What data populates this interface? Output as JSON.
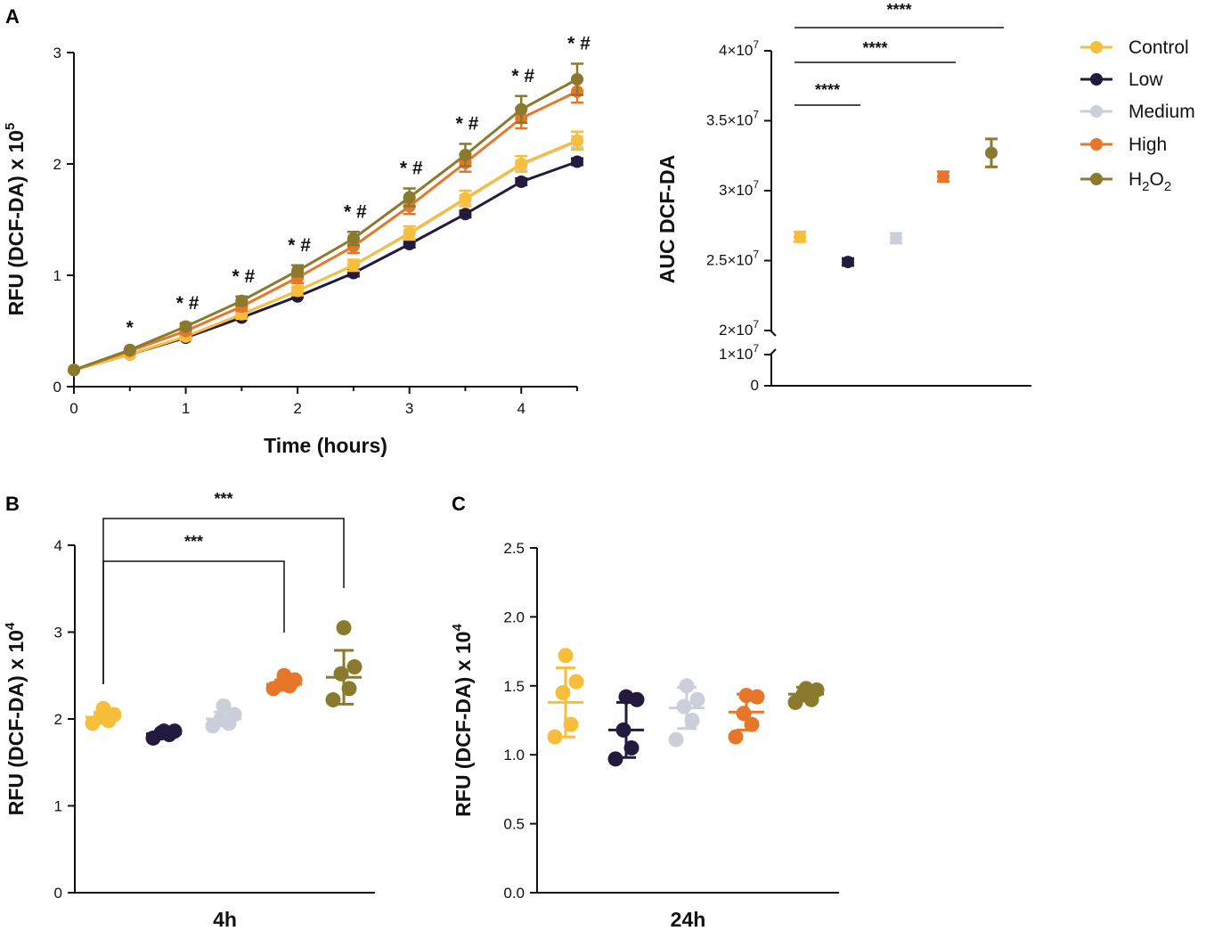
{
  "colors": {
    "Control": "#F7BE3B",
    "Low": "#241A3E",
    "Medium": "#CBCFDA",
    "High": "#E6762A",
    "H2O2": "#8A7A2E"
  },
  "chart_data": [
    {
      "panel": "A",
      "type": "line",
      "xlabel": "Time (hours)",
      "ylabel": "RFU (DCF-DA) x 10",
      "ylabel_exp": "5",
      "xlim": [
        0,
        4.5
      ],
      "ylim": [
        0,
        3
      ],
      "xticks": [
        "0",
        "1",
        "2",
        "3",
        "4"
      ],
      "yticks": [
        "0",
        "1",
        "2",
        "3"
      ],
      "x": [
        0,
        0.5,
        1,
        1.5,
        2,
        2.5,
        3,
        3.5,
        4,
        4.5
      ],
      "series": [
        {
          "name": "Control",
          "values": [
            0.15,
            0.29,
            0.45,
            0.65,
            0.86,
            1.09,
            1.38,
            1.69,
            2.0,
            2.21
          ],
          "err": [
            0.02,
            0.02,
            0.03,
            0.04,
            0.04,
            0.05,
            0.06,
            0.07,
            0.07,
            0.08
          ]
        },
        {
          "name": "Low",
          "values": [
            0.15,
            0.29,
            0.44,
            0.62,
            0.81,
            1.02,
            1.28,
            1.55,
            1.84,
            2.02
          ],
          "err": [
            0.01,
            0.01,
            0.02,
            0.02,
            0.02,
            0.03,
            0.03,
            0.03,
            0.03,
            0.03
          ]
        },
        {
          "name": "Medium",
          "values": [
            0.15,
            0.29,
            0.45,
            0.65,
            0.86,
            1.09,
            1.37,
            1.68,
            1.99,
            2.2
          ],
          "err": [
            0.01,
            0.01,
            0.02,
            0.03,
            0.03,
            0.04,
            0.04,
            0.04,
            0.04,
            0.05
          ]
        },
        {
          "name": "High",
          "values": [
            0.15,
            0.32,
            0.5,
            0.72,
            0.98,
            1.26,
            1.62,
            2.01,
            2.41,
            2.65
          ],
          "err": [
            0.02,
            0.02,
            0.03,
            0.04,
            0.05,
            0.06,
            0.07,
            0.08,
            0.09,
            0.1
          ]
        },
        {
          "name": "H2O2",
          "values": [
            0.15,
            0.33,
            0.54,
            0.77,
            1.04,
            1.33,
            1.7,
            2.08,
            2.49,
            2.76
          ],
          "err": [
            0.02,
            0.02,
            0.03,
            0.04,
            0.05,
            0.06,
            0.08,
            0.1,
            0.12,
            0.14
          ]
        }
      ],
      "annotations": [
        {
          "x": 0.5,
          "text": "*"
        },
        {
          "x": 1,
          "text": "* #"
        },
        {
          "x": 1.5,
          "text": "* #"
        },
        {
          "x": 2,
          "text": "* #"
        },
        {
          "x": 2.5,
          "text": "* #"
        },
        {
          "x": 3,
          "text": "* #"
        },
        {
          "x": 3.5,
          "text": "* #"
        },
        {
          "x": 4,
          "text": "* #"
        },
        {
          "x": 4.5,
          "text": "* #"
        }
      ]
    },
    {
      "panel": "A",
      "type": "scatter",
      "ylabel": "AUC DCF-DA",
      "yaxis_segments": [
        {
          "range": [
            0,
            10000000
          ],
          "ticks": [
            "0",
            "1×10",
            "7"
          ]
        },
        {
          "range": [
            20000000,
            40000000
          ]
        }
      ],
      "ytick_labels": [
        {
          "v": 0,
          "base": "0",
          "exp": ""
        },
        {
          "v": 10000000,
          "base": "1×10",
          "exp": "7"
        },
        {
          "v": 20000000,
          "base": "2×10",
          "exp": "7"
        },
        {
          "v": 25000000,
          "base": "2.5×10",
          "exp": "7"
        },
        {
          "v": 30000000,
          "base": "3×10",
          "exp": "7"
        },
        {
          "v": 35000000,
          "base": "3.5×10",
          "exp": "7"
        },
        {
          "v": 40000000,
          "base": "4×10",
          "exp": "7"
        }
      ],
      "categories": [
        "Control",
        "Low",
        "Medium",
        "High",
        "H2O2"
      ],
      "values": [
        26700000,
        24900000,
        26600000,
        31000000,
        32700000
      ],
      "err": [
        350000,
        250000,
        350000,
        350000,
        1000000
      ],
      "significance": [
        {
          "from": "Control",
          "to": "Low",
          "label": "****"
        },
        {
          "from": "Control",
          "to": "High",
          "label": "****"
        },
        {
          "from": "Control",
          "to": "H2O2",
          "label": "****"
        }
      ]
    },
    {
      "panel": "B",
      "type": "scatter",
      "xlabel": "4h",
      "ylabel": "RFU (DCF-DA) x 10",
      "ylabel_exp": "4",
      "ylim": [
        0,
        4
      ],
      "yticks": [
        "0",
        "1",
        "2",
        "3",
        "4"
      ],
      "categories": [
        "Control",
        "Low",
        "Medium",
        "High",
        "H2O2"
      ],
      "points": [
        [
          1.95,
          1.98,
          2.02,
          2.05,
          2.12
        ],
        [
          1.78,
          1.82,
          1.84,
          1.86,
          1.86
        ],
        [
          1.92,
          1.95,
          2.0,
          2.05,
          2.15
        ],
        [
          2.35,
          2.38,
          2.4,
          2.45,
          2.5
        ],
        [
          2.22,
          2.35,
          2.52,
          2.6,
          3.05
        ]
      ],
      "mean": [
        2.02,
        1.83,
        2.0,
        2.4,
        2.48
      ],
      "sd": [
        0.06,
        0.03,
        0.08,
        0.05,
        0.31
      ],
      "significance": [
        {
          "from": "Control",
          "to": "High",
          "label": "***"
        },
        {
          "from": "Control",
          "to": "H2O2",
          "label": "***"
        }
      ]
    },
    {
      "panel": "C",
      "type": "scatter",
      "xlabel": "24h",
      "ylabel": "RFU (DCF-DA) x 10",
      "ylabel_exp": "4",
      "ylim": [
        0,
        2.5
      ],
      "yticks": [
        "0.0",
        "0.5",
        "1.0",
        "1.5",
        "2.0",
        "2.5"
      ],
      "categories": [
        "Control",
        "Low",
        "Medium",
        "High",
        "H2O2"
      ],
      "points": [
        [
          1.13,
          1.22,
          1.45,
          1.53,
          1.72
        ],
        [
          0.97,
          1.05,
          1.18,
          1.4,
          1.42
        ],
        [
          1.11,
          1.25,
          1.35,
          1.4,
          1.5
        ],
        [
          1.13,
          1.22,
          1.3,
          1.42,
          1.43
        ],
        [
          1.38,
          1.4,
          1.44,
          1.47,
          1.48
        ]
      ],
      "mean": [
        1.38,
        1.18,
        1.34,
        1.31,
        1.44
      ],
      "sd": [
        0.25,
        0.2,
        0.15,
        0.13,
        0.05
      ]
    }
  ],
  "legend": [
    "Control",
    "Low",
    "Medium",
    "High",
    "H2O2"
  ],
  "legend_display": [
    {
      "base": "Control",
      "sub": "",
      "tail": ""
    },
    {
      "base": "Low",
      "sub": "",
      "tail": ""
    },
    {
      "base": "Medium",
      "sub": "",
      "tail": ""
    },
    {
      "base": "High",
      "sub": "",
      "tail": ""
    },
    {
      "base": "H",
      "sub": "2",
      "tail": "O",
      "sub2": "2"
    }
  ],
  "panel_labels": [
    "A",
    "B",
    "C"
  ]
}
